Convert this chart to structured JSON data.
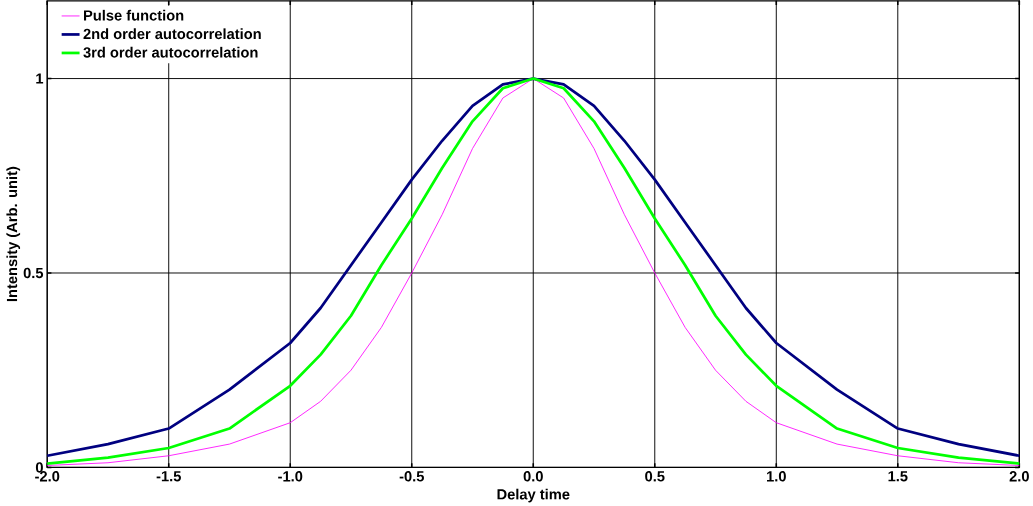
{
  "chart_data": {
    "type": "line",
    "xlabel": "Delay time",
    "ylabel": "Intensity (Arb. unit)",
    "x": [
      -2,
      -1.75,
      -1.5,
      -1.25,
      -1,
      -0.875,
      -0.75,
      -0.625,
      -0.5,
      -0.375,
      -0.25,
      -0.125,
      0,
      0.125,
      0.25,
      0.375,
      0.5,
      0.625,
      0.75,
      0.875,
      1,
      1.25,
      1.5,
      1.75,
      2
    ],
    "series": [
      {
        "name": "Pulse function",
        "color": "#ff00ff",
        "values": [
          0.005,
          0.012,
          0.03,
          0.06,
          0.115,
          0.17,
          0.25,
          0.36,
          0.5,
          0.65,
          0.82,
          0.95,
          1,
          0.95,
          0.82,
          0.65,
          0.5,
          0.36,
          0.25,
          0.17,
          0.115,
          0.06,
          0.03,
          0.012,
          0.005
        ]
      },
      {
        "name": "2nd order autocorrelation",
        "color": "#000080",
        "values": [
          0.03,
          0.06,
          0.1,
          0.2,
          0.32,
          0.41,
          0.52,
          0.63,
          0.74,
          0.84,
          0.93,
          0.985,
          1,
          0.985,
          0.93,
          0.84,
          0.74,
          0.63,
          0.52,
          0.41,
          0.32,
          0.2,
          0.1,
          0.06,
          0.03
        ]
      },
      {
        "name": "3rd order autocorrelation",
        "color": "#00ff00",
        "values": [
          0.01,
          0.025,
          0.05,
          0.1,
          0.21,
          0.29,
          0.39,
          0.52,
          0.64,
          0.77,
          0.89,
          0.975,
          1,
          0.975,
          0.89,
          0.77,
          0.64,
          0.52,
          0.39,
          0.29,
          0.21,
          0.1,
          0.05,
          0.025,
          0.01
        ]
      }
    ],
    "xlim": [
      -2,
      2
    ],
    "ylim": [
      0,
      1.2
    ],
    "xticks": [
      {
        "value": -2,
        "label": "-2.0"
      },
      {
        "value": -1.5,
        "label": "-1.5"
      },
      {
        "value": -1,
        "label": "-1.0"
      },
      {
        "value": -0.5,
        "label": "-0.5"
      },
      {
        "value": 0,
        "label": "0.0"
      },
      {
        "value": 0.5,
        "label": "0.5"
      },
      {
        "value": 1,
        "label": "1.0"
      },
      {
        "value": 1.5,
        "label": "1.5"
      },
      {
        "value": 2,
        "label": "2.0"
      }
    ],
    "yticks": [
      0,
      0.5,
      1
    ],
    "grid": true,
    "legend": "top left",
    "marker": "none",
    "line_style": "solid"
  }
}
